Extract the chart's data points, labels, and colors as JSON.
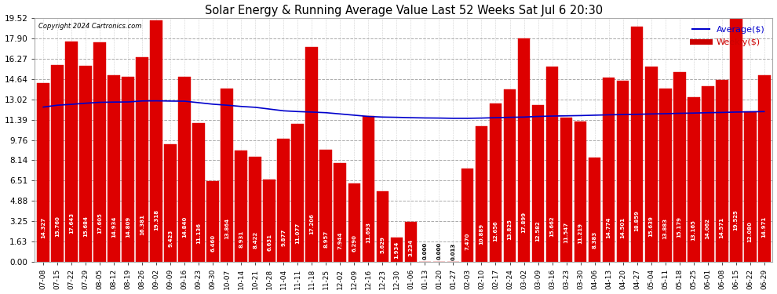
{
  "title": "Solar Energy & Running Average Value Last 52 Weeks Sat Jul 6 20:30",
  "copyright": "Copyright 2024 Cartronics.com",
  "bar_color": "#dd0000",
  "avg_line_color": "#0000cc",
  "weekly_label_color": "#cc0000",
  "avg_label_color": "#0000cc",
  "background_color": "#ffffff",
  "grid_color": "#aaaaaa",
  "categories": [
    "07-08",
    "07-15",
    "07-22",
    "07-29",
    "08-05",
    "08-12",
    "08-19",
    "08-26",
    "09-02",
    "09-09",
    "09-16",
    "09-23",
    "09-30",
    "10-07",
    "10-14",
    "10-21",
    "10-28",
    "11-04",
    "11-11",
    "11-18",
    "11-25",
    "12-02",
    "12-09",
    "12-16",
    "12-23",
    "12-30",
    "01-06",
    "01-13",
    "01-20",
    "01-27",
    "02-03",
    "02-10",
    "02-17",
    "02-24",
    "03-02",
    "03-09",
    "03-16",
    "03-23",
    "03-30",
    "04-06",
    "04-13",
    "04-20",
    "04-27",
    "05-04",
    "05-11",
    "05-18",
    "05-25",
    "06-01",
    "06-08",
    "06-15",
    "06-22",
    "06-29"
  ],
  "weekly_values": [
    14.327,
    15.76,
    17.643,
    15.684,
    17.605,
    14.934,
    14.809,
    16.381,
    19.318,
    9.423,
    14.84,
    11.136,
    6.46,
    13.864,
    8.931,
    8.422,
    6.631,
    9.877,
    11.077,
    17.206,
    8.957,
    7.944,
    6.29,
    11.693,
    5.629,
    1.934,
    3.234,
    0.0,
    0.0,
    0.013,
    7.47,
    10.889,
    12.656,
    13.825,
    17.899,
    12.582,
    15.662,
    11.547,
    11.219,
    8.383,
    14.774,
    14.501,
    18.859,
    15.639,
    13.883,
    15.179,
    13.165,
    14.062,
    14.571,
    19.525,
    12.08,
    14.971
  ],
  "avg_values": [
    12.4,
    12.55,
    12.62,
    12.71,
    12.78,
    12.8,
    12.81,
    12.89,
    12.9,
    12.88,
    12.87,
    12.75,
    12.63,
    12.55,
    12.45,
    12.38,
    12.24,
    12.1,
    12.04,
    12.0,
    11.95,
    11.85,
    11.75,
    11.65,
    11.6,
    11.58,
    11.55,
    11.53,
    11.52,
    11.5,
    11.5,
    11.52,
    11.55,
    11.58,
    11.6,
    11.65,
    11.68,
    11.7,
    11.72,
    11.75,
    11.78,
    11.8,
    11.82,
    11.85,
    11.87,
    11.9,
    11.92,
    11.95,
    11.97,
    12.0,
    12.02,
    12.04
  ],
  "ytick_values": [
    0.0,
    1.63,
    3.25,
    4.88,
    6.51,
    8.14,
    9.76,
    11.39,
    13.02,
    14.64,
    16.27,
    17.9,
    19.52
  ],
  "ymax": 19.52,
  "ymin": 0.0
}
